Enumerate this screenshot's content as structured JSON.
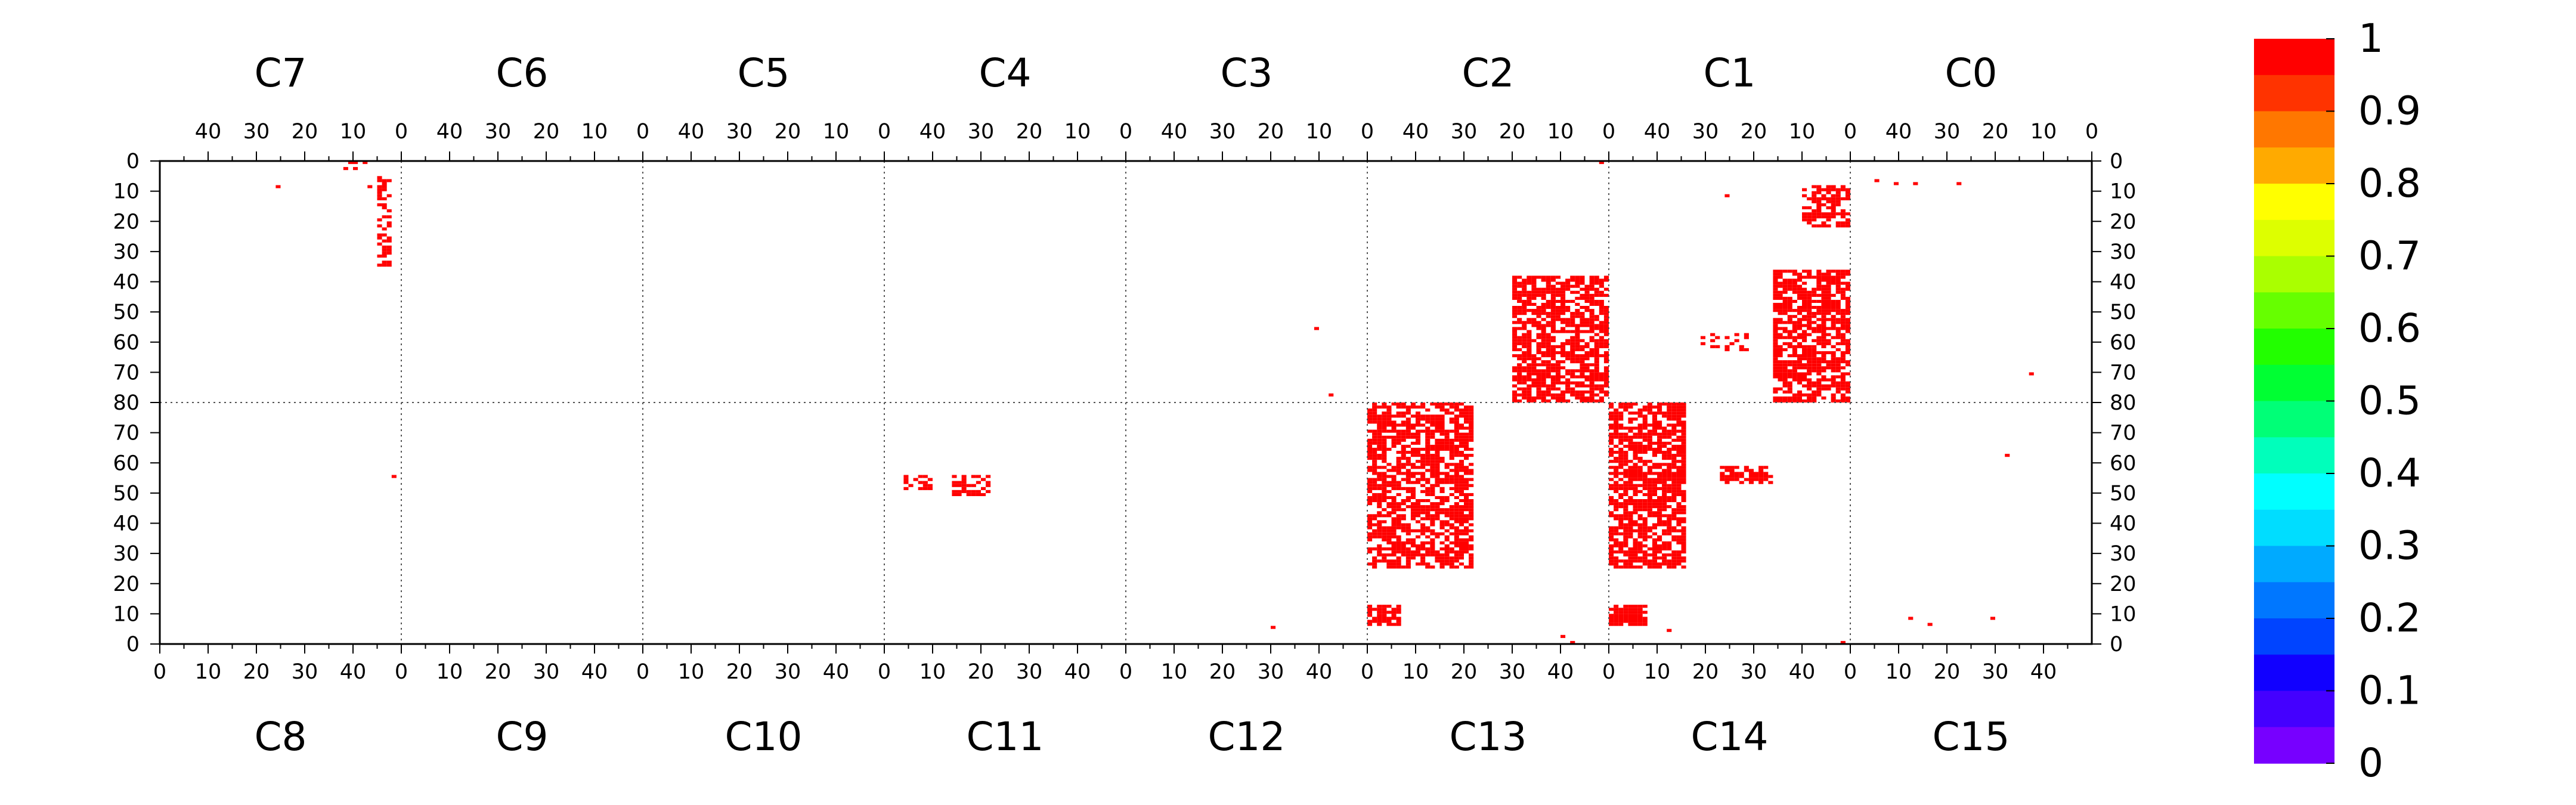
{
  "chart_data": {
    "type": "heatmap",
    "title": "",
    "top_chambers": [
      "C7",
      "C6",
      "C5",
      "C4",
      "C3",
      "C2",
      "C1",
      "C0"
    ],
    "bottom_chambers": [
      "C8",
      "C9",
      "C10",
      "C11",
      "C12",
      "C13",
      "C14",
      "C15"
    ],
    "top_axis_ticks": [
      "40",
      "30",
      "20",
      "10",
      "0"
    ],
    "bottom_axis_ticks": [
      "0",
      "10",
      "20",
      "30",
      "40"
    ],
    "left_axis_ticks": [
      "0",
      "10",
      "20",
      "30",
      "40",
      "50",
      "60",
      "70",
      "80",
      "70",
      "60",
      "50",
      "40",
      "30",
      "20",
      "10",
      "0"
    ],
    "right_axis_ticks": [
      "0",
      "10",
      "20",
      "30",
      "40",
      "50",
      "60",
      "70",
      "80",
      "70",
      "60",
      "50",
      "40",
      "30",
      "20",
      "10",
      "0"
    ],
    "colorbar": {
      "labels": [
        "1",
        "0.9",
        "0.8",
        "0.7",
        "0.6",
        "0.5",
        "0.4",
        "0.3",
        "0.2",
        "0.1",
        "0"
      ],
      "colors": [
        "#ff0000",
        "#ff3300",
        "#ff7700",
        "#ffaa00",
        "#ffff00",
        "#ddff00",
        "#aaff00",
        "#66ff00",
        "#22ff00",
        "#00ff33",
        "#00ff77",
        "#00ffbb",
        "#00ffff",
        "#00ddff",
        "#00aaff",
        "#0077ff",
        "#0044ff",
        "#1100ff",
        "#4400ff",
        "#7700ff"
      ],
      "range": [
        0,
        1
      ]
    },
    "cell_color": "#ff0000",
    "hotspot_regions": [
      {
        "chamber": "C7",
        "x": [
          2,
          5
        ],
        "y": [
          5,
          35
        ],
        "density": 0.5
      },
      {
        "chamber": "C7",
        "x": [
          5,
          12
        ],
        "y": [
          0,
          3
        ],
        "density": 0.25
      },
      {
        "chamber": "C1",
        "x": [
          0,
          10
        ],
        "y": [
          8,
          22
        ],
        "density": 0.65
      },
      {
        "chamber": "C2",
        "x": [
          0,
          20
        ],
        "y": [
          38,
          80
        ],
        "density": 0.7
      },
      {
        "chamber": "C1",
        "x": [
          0,
          16
        ],
        "y": [
          36,
          80
        ],
        "density": 0.72
      },
      {
        "chamber": "C13",
        "x": [
          0,
          22
        ],
        "y": [
          25,
          80
        ],
        "density": 0.7
      },
      {
        "chamber": "C14",
        "x": [
          0,
          16
        ],
        "y": [
          25,
          80
        ],
        "density": 0.72
      },
      {
        "chamber": "C13",
        "x": [
          0,
          7
        ],
        "y": [
          6,
          13
        ],
        "density": 0.85
      },
      {
        "chamber": "C14",
        "x": [
          0,
          8
        ],
        "y": [
          6,
          13
        ],
        "density": 0.85
      },
      {
        "chamber": "C11",
        "x": [
          4,
          10
        ],
        "y": [
          51,
          56
        ],
        "density": 0.55
      },
      {
        "chamber": "C11",
        "x": [
          14,
          22
        ],
        "y": [
          49,
          56
        ],
        "density": 0.65
      },
      {
        "chamber": "C14",
        "x": [
          23,
          34
        ],
        "y": [
          53,
          59
        ],
        "density": 0.55
      },
      {
        "chamber": "C1",
        "x": [
          21,
          31
        ],
        "y": [
          57,
          63
        ],
        "density": 0.3
      }
    ],
    "sparse_points": [
      {
        "chamber": "C7",
        "x": 25,
        "y": 8
      },
      {
        "chamber": "C7",
        "x": 6,
        "y": 8
      },
      {
        "chamber": "C8",
        "x": 48,
        "y": 55
      },
      {
        "chamber": "C3",
        "x": 10,
        "y": 55
      },
      {
        "chamber": "C12",
        "x": 42,
        "y": 82
      },
      {
        "chamber": "C2",
        "x": 1,
        "y": 0
      },
      {
        "chamber": "C1",
        "x": 25,
        "y": 11
      },
      {
        "chamber": "C0",
        "x": 44,
        "y": 6
      },
      {
        "chamber": "C0",
        "x": 40,
        "y": 7
      },
      {
        "chamber": "C0",
        "x": 36,
        "y": 7
      },
      {
        "chamber": "C0",
        "x": 27,
        "y": 7
      },
      {
        "chamber": "C0",
        "x": 12,
        "y": 70
      },
      {
        "chamber": "C15",
        "x": 32,
        "y": 62
      },
      {
        "chamber": "C15",
        "x": 12,
        "y": 8
      },
      {
        "chamber": "C15",
        "x": 16,
        "y": 6
      },
      {
        "chamber": "C15",
        "x": 29,
        "y": 8
      },
      {
        "chamber": "C14",
        "x": 48,
        "y": 0
      },
      {
        "chamber": "C13",
        "x": 40,
        "y": 2
      },
      {
        "chamber": "C13",
        "x": 42,
        "y": 0
      },
      {
        "chamber": "C14",
        "x": 12,
        "y": 4
      },
      {
        "chamber": "C12",
        "x": 30,
        "y": 5
      }
    ],
    "grid": "dotted",
    "legend_placement": "right"
  }
}
